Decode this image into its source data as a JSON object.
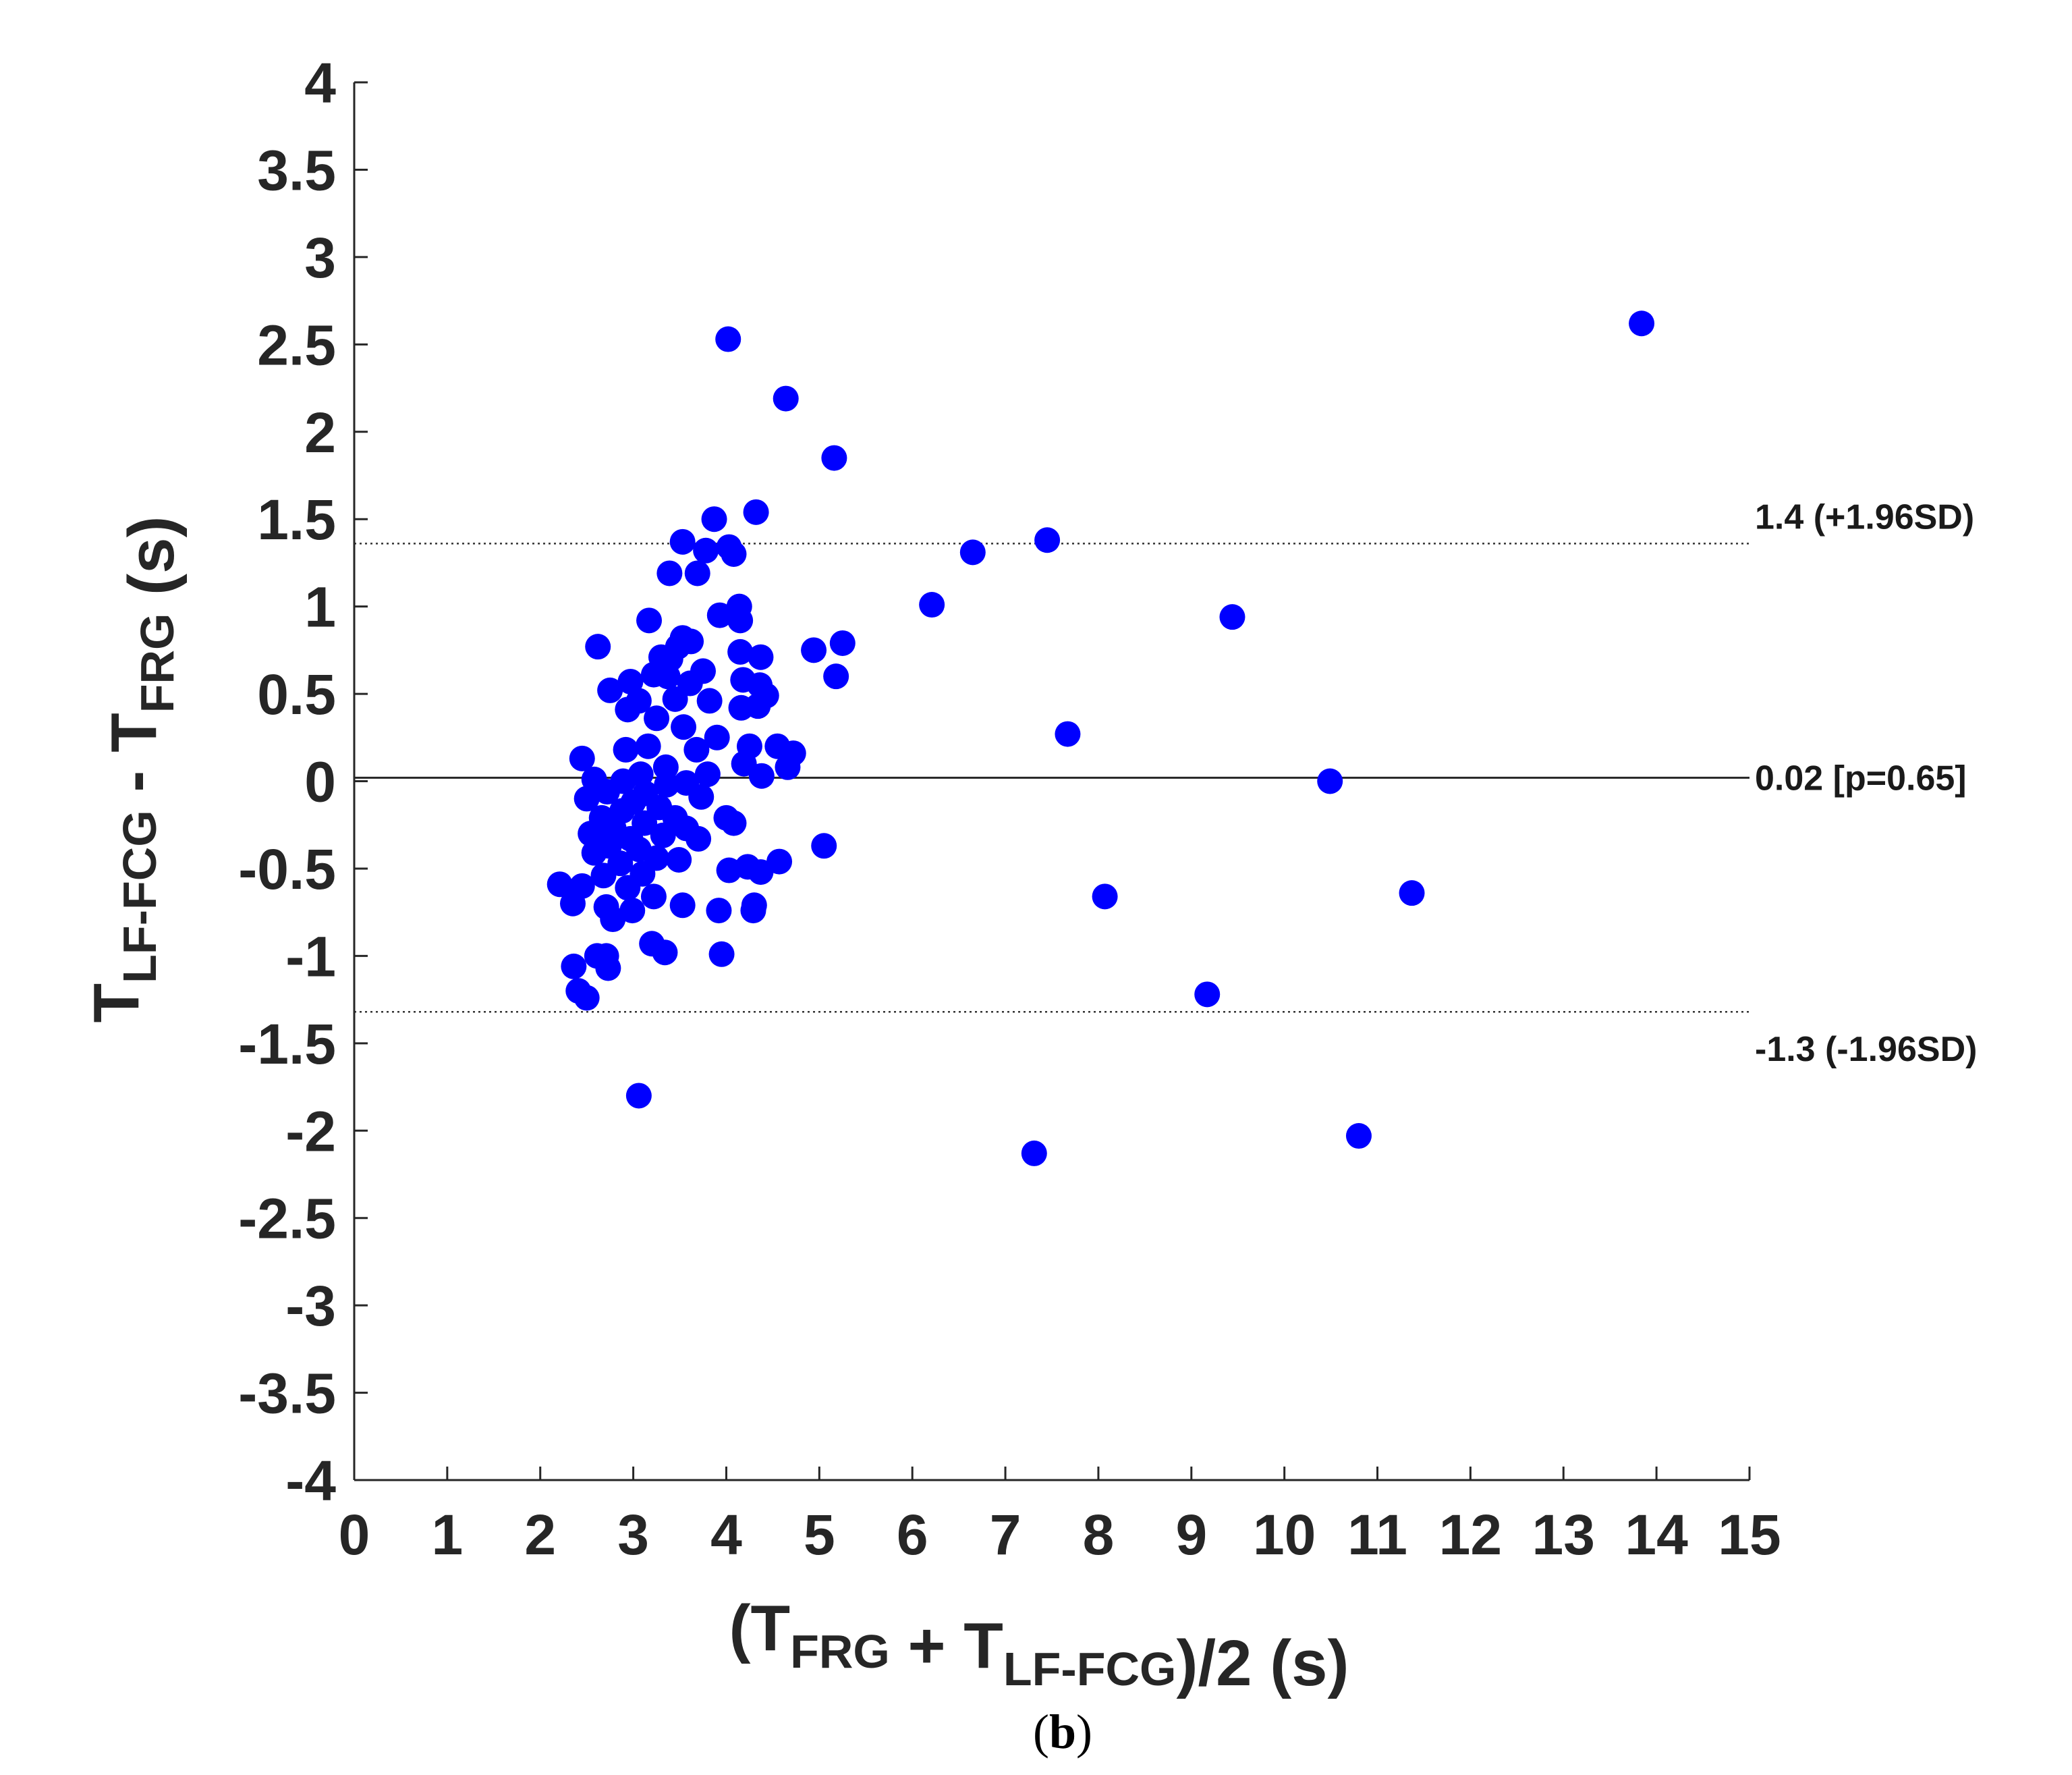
{
  "chart_data": {
    "type": "scatter",
    "title": "",
    "xlabel": {
      "parts": [
        {
          "t": "(T"
        },
        {
          "t": "FRG",
          "sub": true
        },
        {
          "t": " + T"
        },
        {
          "t": "LF-FCG",
          "sub": true
        },
        {
          "t": ")/2 (s)"
        }
      ]
    },
    "ylabel": {
      "parts": [
        {
          "t": "T"
        },
        {
          "t": "LF-FCG",
          "sub": true
        },
        {
          "t": " - T"
        },
        {
          "t": "FRG",
          "sub": true
        },
        {
          "t": " (s)"
        }
      ]
    },
    "xlim": [
      0,
      15
    ],
    "ylim": [
      -4,
      4
    ],
    "xticks": [
      0,
      1,
      2,
      3,
      4,
      5,
      6,
      7,
      8,
      9,
      10,
      11,
      12,
      13,
      14,
      15
    ],
    "yticks": [
      -4,
      -3.5,
      -3,
      -2.5,
      -2,
      -1.5,
      -1,
      -0.5,
      0,
      0.5,
      1,
      1.5,
      2,
      2.5,
      3,
      3.5,
      4
    ],
    "xtick_labels": [
      "0",
      "1",
      "2",
      "3",
      "4",
      "5",
      "6",
      "7",
      "8",
      "9",
      "10",
      "11",
      "12",
      "13",
      "14",
      "15"
    ],
    "ytick_labels": [
      "-4",
      "-3.5",
      "-3",
      "-2.5",
      "-2",
      "-1.5",
      "-1",
      "-0.5",
      "0",
      "0.5",
      "1",
      "1.5",
      "2",
      "2.5",
      "3",
      "3.5",
      "4"
    ],
    "grid": false,
    "marker_color": "#0000ff",
    "reference_lines": [
      {
        "y": 1.36,
        "style": "dotted",
        "label": "1.4 (+1.96SD)"
      },
      {
        "y": 0.02,
        "style": "solid",
        "label": "0.02 [p=0.65]"
      },
      {
        "y": -1.32,
        "style": "dotted",
        "label": "-1.3 (-1.96SD)"
      }
    ],
    "points": [
      [
        13.84,
        2.62
      ],
      [
        4.02,
        2.53
      ],
      [
        4.64,
        2.19
      ],
      [
        5.16,
        1.85
      ],
      [
        4.32,
        1.54
      ],
      [
        3.87,
        1.5
      ],
      [
        7.45,
        1.38
      ],
      [
        6.65,
        1.31
      ],
      [
        3.53,
        1.37
      ],
      [
        4.03,
        1.34
      ],
      [
        4.08,
        1.3
      ],
      [
        3.78,
        1.32
      ],
      [
        3.39,
        1.19
      ],
      [
        3.69,
        1.19
      ],
      [
        6.21,
        1.01
      ],
      [
        9.44,
        0.94
      ],
      [
        4.14,
        1.0
      ],
      [
        3.93,
        0.95
      ],
      [
        4.15,
        0.92
      ],
      [
        3.17,
        0.92
      ],
      [
        2.62,
        0.77
      ],
      [
        5.25,
        0.79
      ],
      [
        4.94,
        0.75
      ],
      [
        3.53,
        0.82
      ],
      [
        3.62,
        0.8
      ],
      [
        3.48,
        0.77
      ],
      [
        4.15,
        0.74
      ],
      [
        4.37,
        0.71
      ],
      [
        3.3,
        0.71
      ],
      [
        3.4,
        0.7
      ],
      [
        3.75,
        0.63
      ],
      [
        5.18,
        0.6
      ],
      [
        4.18,
        0.58
      ],
      [
        4.36,
        0.55
      ],
      [
        2.97,
        0.57
      ],
      [
        3.22,
        0.61
      ],
      [
        3.37,
        0.6
      ],
      [
        3.61,
        0.56
      ],
      [
        4.43,
        0.49
      ],
      [
        4.16,
        0.42
      ],
      [
        4.34,
        0.43
      ],
      [
        3.06,
        0.46
      ],
      [
        3.45,
        0.47
      ],
      [
        3.82,
        0.46
      ],
      [
        2.75,
        0.52
      ],
      [
        2.94,
        0.41
      ],
      [
        3.25,
        0.36
      ],
      [
        3.54,
        0.31
      ],
      [
        7.67,
        0.27
      ],
      [
        3.9,
        0.25
      ],
      [
        4.25,
        0.2
      ],
      [
        4.55,
        0.2
      ],
      [
        4.72,
        0.16
      ],
      [
        3.16,
        0.2
      ],
      [
        2.92,
        0.18
      ],
      [
        3.68,
        0.18
      ],
      [
        2.45,
        0.13
      ],
      [
        4.19,
        0.1
      ],
      [
        4.66,
        0.08
      ],
      [
        3.35,
        0.08
      ],
      [
        3.08,
        0.04
      ],
      [
        4.38,
        0.03
      ],
      [
        3.8,
        0.04
      ],
      [
        2.58,
        0.01
      ],
      [
        10.49,
        0.0
      ],
      [
        2.89,
        0.0
      ],
      [
        3.57,
        -0.01
      ],
      [
        3.36,
        -0.02
      ],
      [
        2.72,
        -0.06
      ],
      [
        3.13,
        -0.07
      ],
      [
        3.73,
        -0.09
      ],
      [
        2.5,
        -0.1
      ],
      [
        3.0,
        -0.12
      ],
      [
        3.28,
        -0.15
      ],
      [
        2.88,
        -0.17
      ],
      [
        2.66,
        -0.21
      ],
      [
        4.0,
        -0.21
      ],
      [
        3.45,
        -0.21
      ],
      [
        3.12,
        -0.24
      ],
      [
        4.08,
        -0.24
      ],
      [
        2.79,
        -0.27
      ],
      [
        3.57,
        -0.27
      ],
      [
        2.54,
        -0.3
      ],
      [
        3.32,
        -0.31
      ],
      [
        2.97,
        -0.33
      ],
      [
        3.7,
        -0.33
      ],
      [
        2.74,
        -0.37
      ],
      [
        5.05,
        -0.37
      ],
      [
        3.06,
        -0.39
      ],
      [
        2.58,
        -0.41
      ],
      [
        3.25,
        -0.44
      ],
      [
        3.49,
        -0.45
      ],
      [
        4.57,
        -0.46
      ],
      [
        2.86,
        -0.47
      ],
      [
        4.23,
        -0.49
      ],
      [
        4.03,
        -0.51
      ],
      [
        4.37,
        -0.52
      ],
      [
        2.68,
        -0.54
      ],
      [
        3.1,
        -0.53
      ],
      [
        2.21,
        -0.59
      ],
      [
        2.45,
        -0.6
      ],
      [
        2.94,
        -0.61
      ],
      [
        11.37,
        -0.64
      ],
      [
        8.07,
        -0.66
      ],
      [
        3.22,
        -0.66
      ],
      [
        2.35,
        -0.7
      ],
      [
        3.53,
        -0.71
      ],
      [
        2.71,
        -0.72
      ],
      [
        4.3,
        -0.71
      ],
      [
        3.92,
        -0.74
      ],
      [
        4.29,
        -0.74
      ],
      [
        2.99,
        -0.74
      ],
      [
        2.78,
        -0.79
      ],
      [
        3.2,
        -0.93
      ],
      [
        3.34,
        -0.98
      ],
      [
        3.95,
        -0.99
      ],
      [
        2.61,
        -1.0
      ],
      [
        2.71,
        -1.0
      ],
      [
        2.36,
        -1.06
      ],
      [
        2.73,
        -1.07
      ],
      [
        9.17,
        -1.22
      ],
      [
        2.41,
        -1.2
      ],
      [
        2.5,
        -1.24
      ],
      [
        3.06,
        -1.8
      ],
      [
        10.8,
        -2.03
      ],
      [
        7.31,
        -2.13
      ]
    ]
  },
  "panel_label": {
    "open": "(",
    "letter": "b",
    "close": ")"
  }
}
